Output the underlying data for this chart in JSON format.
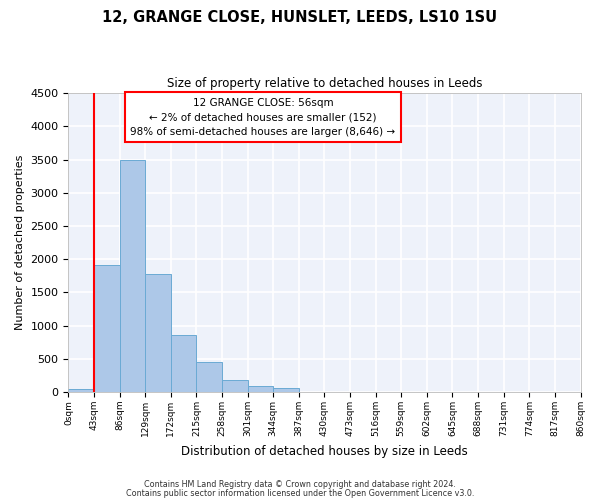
{
  "title": "12, GRANGE CLOSE, HUNSLET, LEEDS, LS10 1SU",
  "subtitle": "Size of property relative to detached houses in Leeds",
  "xlabel": "Distribution of detached houses by size in Leeds",
  "ylabel": "Number of detached properties",
  "bar_color": "#adc8e8",
  "bar_edge_color": "#6aaad4",
  "background_color": "#eef2fa",
  "grid_color": "#ffffff",
  "tick_labels": [
    "0sqm",
    "43sqm",
    "86sqm",
    "129sqm",
    "172sqm",
    "215sqm",
    "258sqm",
    "301sqm",
    "344sqm",
    "387sqm",
    "430sqm",
    "473sqm",
    "516sqm",
    "559sqm",
    "602sqm",
    "645sqm",
    "688sqm",
    "731sqm",
    "774sqm",
    "817sqm",
    "860sqm"
  ],
  "bar_heights": [
    50,
    1920,
    3500,
    1780,
    860,
    460,
    180,
    100,
    60,
    0,
    0,
    0,
    0,
    0,
    0,
    0,
    0,
    0,
    0,
    0
  ],
  "ylim": [
    0,
    4500
  ],
  "yticks": [
    0,
    500,
    1000,
    1500,
    2000,
    2500,
    3000,
    3500,
    4000,
    4500
  ],
  "red_line_x": 1,
  "annotation_title": "12 GRANGE CLOSE: 56sqm",
  "annotation_line1": "← 2% of detached houses are smaller (152)",
  "annotation_line2": "98% of semi-detached houses are larger (8,646) →",
  "footer1": "Contains HM Land Registry data © Crown copyright and database right 2024.",
  "footer2": "Contains public sector information licensed under the Open Government Licence v3.0."
}
